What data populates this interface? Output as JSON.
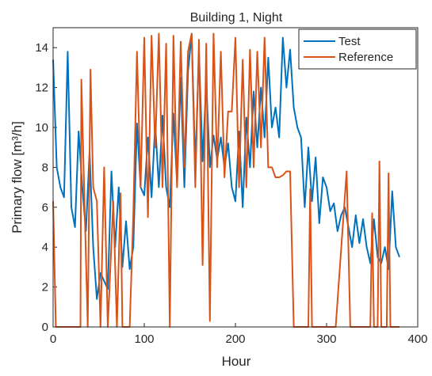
{
  "chart_data": {
    "type": "line",
    "title": "Building 1, Night",
    "xlabel": "Hour",
    "ylabel": "Primary flow [m³/h]",
    "xlim": [
      0,
      400
    ],
    "xticks": [
      0,
      100,
      200,
      300,
      400
    ],
    "ylim": [
      0,
      15
    ],
    "yticks": [
      0,
      2,
      4,
      6,
      8,
      10,
      12,
      14
    ],
    "legend": "northeast",
    "series": [
      {
        "name": "Test",
        "color": "#0072bd",
        "x": [
          0,
          4,
          8,
          12,
          16,
          20,
          24,
          28,
          32,
          36,
          40,
          44,
          48,
          52,
          56,
          60,
          64,
          68,
          72,
          76,
          80,
          84,
          88,
          92,
          96,
          100,
          104,
          108,
          112,
          116,
          120,
          124,
          128,
          132,
          136,
          140,
          144,
          148,
          152,
          156,
          160,
          164,
          168,
          172,
          176,
          180,
          184,
          188,
          192,
          196,
          200,
          204,
          208,
          212,
          216,
          220,
          224,
          228,
          232,
          236,
          240,
          244,
          248,
          252,
          256,
          260,
          264,
          268,
          272,
          276,
          280,
          284,
          288,
          292,
          296,
          300,
          304,
          308,
          312,
          316,
          320,
          324,
          328,
          332,
          336,
          340,
          344,
          348,
          352,
          356,
          360,
          364,
          368,
          372,
          376,
          380
        ],
        "values": [
          13.4,
          8,
          7,
          6.5,
          13.8,
          6,
          5,
          9.8,
          7,
          4.8,
          8.8,
          4,
          1.4,
          2.7,
          2.3,
          1.9,
          7.8,
          4,
          7,
          3,
          5.3,
          2.9,
          4,
          10.2,
          7,
          6.6,
          9.5,
          6.5,
          10.2,
          7,
          10.6,
          7,
          6,
          10.7,
          7.2,
          12.5,
          7,
          12.8,
          14.7,
          8,
          13.8,
          8.3,
          12.3,
          8,
          9.6,
          8.4,
          9.5,
          8,
          9.2,
          7,
          6.3,
          9.8,
          6,
          10.5,
          8,
          11.8,
          9,
          12,
          9.5,
          13.5,
          10,
          11,
          9.5,
          14.5,
          12,
          13.9,
          11,
          10,
          9.5,
          6,
          9,
          6.3,
          8.5,
          5.2,
          7.5,
          7,
          5.8,
          6.2,
          4.8,
          5.6,
          6,
          5,
          4,
          5.6,
          4.2,
          5.4,
          4,
          3.2,
          5.4,
          3.5,
          3.2,
          4,
          2.9,
          6.8,
          4,
          3.5
        ]
      },
      {
        "name": "Reference",
        "color": "#d95319",
        "x": [
          0,
          3,
          8,
          30,
          31,
          34,
          38,
          41,
          44,
          48,
          52,
          56,
          60,
          66,
          70,
          74,
          76,
          84,
          88,
          92,
          96,
          100,
          104,
          108,
          112,
          116,
          120,
          124,
          128,
          132,
          136,
          140,
          144,
          148,
          152,
          156,
          160,
          164,
          168,
          172,
          176,
          180,
          184,
          188,
          192,
          196,
          200,
          204,
          208,
          212,
          216,
          220,
          224,
          228,
          232,
          236,
          240,
          244,
          248,
          252,
          256,
          260,
          264,
          280,
          282,
          284,
          310,
          322,
          326,
          348,
          350,
          352,
          356,
          358,
          360,
          366,
          368,
          370,
          380
        ],
        "values": [
          6.3,
          0,
          0,
          0,
          12.4,
          7,
          0,
          12.9,
          7,
          6.3,
          0,
          8,
          0,
          6.3,
          0,
          6.7,
          0,
          0,
          5.7,
          13.8,
          7,
          14.5,
          5.5,
          14.6,
          9,
          14.7,
          7,
          14.2,
          0,
          14.6,
          7,
          14.3,
          8,
          13.8,
          14.7,
          7,
          14.4,
          3.1,
          14.2,
          0.3,
          14.7,
          8,
          13.8,
          7.5,
          10.8,
          10.8,
          14.5,
          7,
          13.4,
          7,
          13.9,
          8,
          13.8,
          9,
          14.5,
          8,
          8,
          7.5,
          7.5,
          7.6,
          7.8,
          7.8,
          0,
          0,
          6.9,
          0,
          0,
          7.8,
          0,
          0,
          5.7,
          0,
          0,
          8.3,
          0,
          0,
          7.7,
          0,
          0
        ]
      }
    ]
  }
}
